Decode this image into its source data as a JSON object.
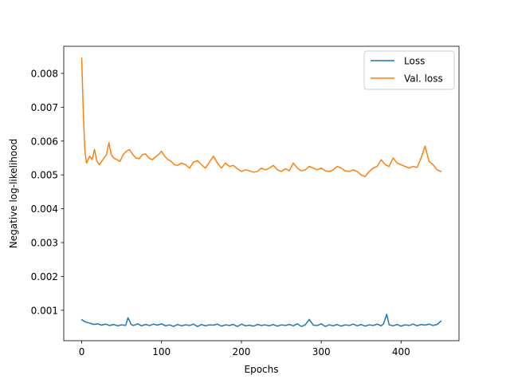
{
  "chart_data": {
    "type": "line",
    "title": "",
    "xlabel": "Epochs",
    "ylabel": "Negative log-likelihood",
    "xlim": [
      -22.5,
      472.5
    ],
    "ylim": [
      0.0001,
      0.0088
    ],
    "xticks": [
      0,
      100,
      200,
      300,
      400
    ],
    "yticks": [
      0.001,
      0.002,
      0.003,
      0.004,
      0.005,
      0.006,
      0.007,
      0.008
    ],
    "ytick_labels": [
      "0.001",
      "0.002",
      "0.003",
      "0.004",
      "0.005",
      "0.006",
      "0.007",
      "0.008"
    ],
    "grid": false,
    "legend_position": "top-right",
    "series": [
      {
        "name": "Loss",
        "color": "#1f77b4",
        "x": [
          0,
          5,
          10,
          15,
          20,
          25,
          30,
          35,
          40,
          45,
          50,
          55,
          58,
          62,
          65,
          70,
          75,
          80,
          85,
          90,
          95,
          100,
          105,
          110,
          115,
          120,
          125,
          130,
          135,
          140,
          145,
          150,
          155,
          160,
          165,
          170,
          175,
          180,
          185,
          190,
          195,
          200,
          205,
          210,
          215,
          220,
          225,
          230,
          235,
          240,
          245,
          250,
          255,
          260,
          265,
          270,
          275,
          280,
          285,
          290,
          295,
          300,
          305,
          310,
          315,
          320,
          325,
          330,
          335,
          340,
          345,
          350,
          355,
          360,
          365,
          370,
          375,
          378,
          382,
          385,
          390,
          395,
          400,
          405,
          410,
          415,
          420,
          425,
          430,
          435,
          440,
          445,
          450
        ],
        "y": [
          0.00072,
          0.00065,
          0.00062,
          0.00058,
          0.0006,
          0.00056,
          0.00059,
          0.00055,
          0.00058,
          0.00054,
          0.00057,
          0.00055,
          0.00078,
          0.00058,
          0.00055,
          0.0006,
          0.00054,
          0.00058,
          0.00055,
          0.00059,
          0.00056,
          0.0006,
          0.00054,
          0.00057,
          0.00052,
          0.00058,
          0.00054,
          0.00057,
          0.00055,
          0.00059,
          0.00052,
          0.00058,
          0.00054,
          0.00057,
          0.00056,
          0.00059,
          0.00053,
          0.00057,
          0.00055,
          0.00058,
          0.00052,
          0.00059,
          0.00054,
          0.00056,
          0.00053,
          0.00058,
          0.00055,
          0.00057,
          0.00054,
          0.00058,
          0.00053,
          0.00057,
          0.00055,
          0.00058,
          0.00054,
          0.0006,
          0.00052,
          0.00057,
          0.00073,
          0.00056,
          0.00055,
          0.0006,
          0.00052,
          0.00057,
          0.00054,
          0.00058,
          0.00053,
          0.00057,
          0.00055,
          0.00059,
          0.00054,
          0.00058,
          0.00053,
          0.00057,
          0.00055,
          0.00059,
          0.00054,
          0.0006,
          0.00088,
          0.00057,
          0.00054,
          0.00058,
          0.00053,
          0.00057,
          0.00055,
          0.00059,
          0.00054,
          0.00058,
          0.00056,
          0.00059,
          0.00055,
          0.00058,
          0.00068
        ]
      },
      {
        "name": "Val. loss",
        "color": "#ff7f0e",
        "x": [
          0,
          2,
          4,
          6,
          8,
          10,
          13,
          16,
          19,
          22,
          25,
          28,
          31,
          34,
          37,
          40,
          44,
          48,
          52,
          56,
          60,
          64,
          68,
          72,
          76,
          80,
          84,
          88,
          92,
          96,
          100,
          104,
          108,
          112,
          116,
          120,
          125,
          130,
          135,
          140,
          145,
          150,
          155,
          160,
          165,
          170,
          175,
          180,
          185,
          190,
          195,
          200,
          205,
          210,
          215,
          220,
          225,
          230,
          235,
          240,
          245,
          250,
          255,
          260,
          265,
          270,
          275,
          280,
          285,
          290,
          295,
          300,
          305,
          310,
          315,
          320,
          325,
          330,
          335,
          340,
          345,
          350,
          355,
          360,
          365,
          370,
          375,
          380,
          385,
          390,
          395,
          400,
          405,
          410,
          415,
          420,
          425,
          430,
          435,
          440,
          445,
          450
        ],
        "y": [
          0.00845,
          0.0068,
          0.0057,
          0.00535,
          0.00545,
          0.00555,
          0.00545,
          0.00575,
          0.0054,
          0.0053,
          0.0054,
          0.0055,
          0.0056,
          0.00595,
          0.0056,
          0.0055,
          0.00545,
          0.0054,
          0.0056,
          0.0057,
          0.00575,
          0.0056,
          0.0055,
          0.00548,
          0.0056,
          0.00562,
          0.0055,
          0.00545,
          0.00552,
          0.0056,
          0.0057,
          0.00555,
          0.00545,
          0.0054,
          0.0053,
          0.00528,
          0.00535,
          0.0053,
          0.0052,
          0.00538,
          0.00542,
          0.0053,
          0.0052,
          0.00538,
          0.00555,
          0.00535,
          0.0052,
          0.00535,
          0.00525,
          0.00528,
          0.00518,
          0.0051,
          0.00515,
          0.00512,
          0.00508,
          0.0051,
          0.0052,
          0.00515,
          0.0052,
          0.00528,
          0.00515,
          0.0051,
          0.00518,
          0.00512,
          0.00535,
          0.0052,
          0.00512,
          0.00515,
          0.00525,
          0.0052,
          0.00515,
          0.0052,
          0.00512,
          0.0051,
          0.00515,
          0.00525,
          0.0052,
          0.00512,
          0.0051,
          0.00515,
          0.0051,
          0.005,
          0.00495,
          0.0051,
          0.0052,
          0.00525,
          0.00545,
          0.0053,
          0.00525,
          0.0055,
          0.00535,
          0.0053,
          0.00525,
          0.0052,
          0.00525,
          0.00522,
          0.0055,
          0.00585,
          0.0054,
          0.0053,
          0.00515,
          0.0051
        ]
      }
    ]
  }
}
